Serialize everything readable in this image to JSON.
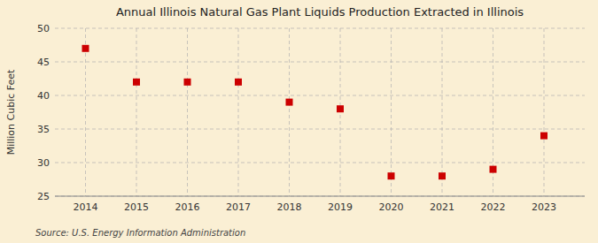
{
  "chart_data": {
    "type": "scatter",
    "title": "Annual Illinois Natural Gas Plant Liquids Production Extracted in Illinois",
    "y_label": "Million Cubic Feet",
    "source": "Source: U.S. Energy Information Administration",
    "x": [
      2014,
      2015,
      2016,
      2017,
      2018,
      2019,
      2020,
      2021,
      2022,
      2023
    ],
    "values": [
      47.0,
      42.0,
      42.0,
      42.0,
      39.0,
      38.0,
      28.0,
      28.0,
      29.0,
      34.0
    ],
    "xlim": [
      2013.4,
      2023.8
    ],
    "xticks": [
      2014,
      2015,
      2016,
      2017,
      2018,
      2019,
      2020,
      2021,
      2022,
      2023
    ],
    "ylim": [
      25,
      50
    ],
    "yticks": [
      25,
      30,
      35,
      40,
      45,
      50
    ],
    "color": "#cc0000",
    "marker": "square",
    "grid": true
  }
}
